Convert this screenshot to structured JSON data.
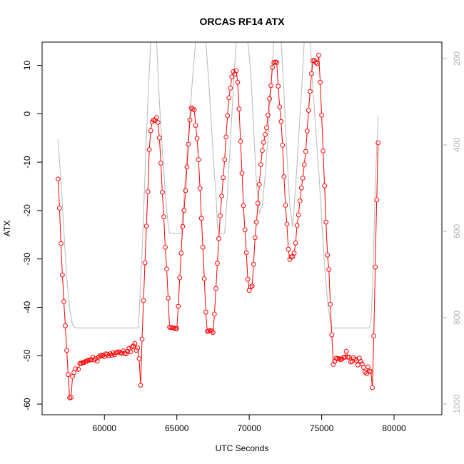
{
  "chart_data": {
    "type": "line",
    "title": "ORCAS RF14 ATX",
    "xlabel": "UTC Seconds",
    "ylabel": "ATX",
    "xlim": [
      55700,
      83300
    ],
    "ylim": [
      -62.2,
      14.8
    ],
    "y2lim": [
      1025,
      162
    ],
    "y2_reversed": true,
    "x_ticks": [
      60000,
      65000,
      70000,
      75000,
      80000
    ],
    "y_ticks": [
      10,
      0,
      -10,
      -20,
      -30,
      -40,
      -50,
      -60
    ],
    "y2_ticks": [
      200,
      400,
      600,
      800,
      1000
    ],
    "colors": {
      "atx_series": "#ff0000",
      "secondary_series": "#bebebe",
      "axis": "#000000",
      "right_axis": "#b3b3b3"
    },
    "series": [
      {
        "values": [
          [
            56800,
            -13.5
          ],
          [
            56900,
            -19.5
          ],
          [
            57000,
            -26.8
          ],
          [
            57100,
            -33.3
          ],
          [
            57200,
            -38.8
          ],
          [
            57300,
            -43.8
          ],
          [
            57400,
            -48.9
          ],
          [
            57500,
            -53.9
          ],
          [
            57600,
            -58.7
          ],
          [
            57700,
            -58.6
          ],
          [
            57800,
            -54.3
          ],
          [
            57900,
            -53.5
          ],
          [
            58000,
            -52.7
          ],
          [
            58200,
            -52.8
          ],
          [
            58300,
            -51.6
          ],
          [
            58400,
            -51.6
          ],
          [
            58500,
            -51.4
          ],
          [
            58600,
            -51.4
          ],
          [
            58700,
            -51.2
          ],
          [
            58800,
            -51.1
          ],
          [
            58900,
            -50.9
          ],
          [
            59000,
            -50.9
          ],
          [
            59100,
            -50.8
          ],
          [
            59200,
            -50.3
          ],
          [
            59300,
            -50.9
          ],
          [
            59400,
            -50.6
          ],
          [
            59500,
            -51.1
          ],
          [
            59600,
            -50.3
          ],
          [
            59700,
            -50.0
          ],
          [
            59800,
            -50.0
          ],
          [
            59900,
            -49.9
          ],
          [
            60000,
            -50.2
          ],
          [
            60100,
            -49.6
          ],
          [
            60200,
            -49.7
          ],
          [
            60300,
            -50.0
          ],
          [
            60400,
            -49.6
          ],
          [
            60500,
            -49.9
          ],
          [
            60600,
            -49.4
          ],
          [
            60700,
            -49.8
          ],
          [
            60800,
            -49.4
          ],
          [
            60900,
            -49.3
          ],
          [
            61000,
            -49.2
          ],
          [
            61100,
            -49.4
          ],
          [
            61200,
            -49.5
          ],
          [
            61300,
            -49.0
          ],
          [
            61400,
            -49.5
          ],
          [
            61500,
            -49.6
          ],
          [
            61600,
            -49.1
          ],
          [
            61700,
            -48.5
          ],
          [
            61800,
            -49.2
          ],
          [
            61900,
            -48.2
          ],
          [
            62000,
            -48.0
          ],
          [
            62100,
            -47.5
          ],
          [
            62200,
            -48.9
          ],
          [
            62300,
            -48.4
          ],
          [
            62400,
            -50.6
          ],
          [
            62500,
            -56.1
          ],
          [
            62600,
            -46.6
          ],
          [
            62700,
            -38.6
          ],
          [
            62800,
            -30.8
          ],
          [
            62900,
            -23.2
          ],
          [
            63000,
            -16.1
          ],
          [
            63100,
            -7.4
          ],
          [
            63200,
            -3.5
          ],
          [
            63300,
            -1.7
          ],
          [
            63400,
            -1.3
          ],
          [
            63500,
            -1.4
          ],
          [
            63600,
            -0.8
          ],
          [
            63700,
            -1.8
          ],
          [
            63800,
            -5.0
          ],
          [
            63900,
            -10.2
          ],
          [
            64000,
            -16.2
          ],
          [
            64100,
            -21.3
          ],
          [
            64200,
            -27.6
          ],
          [
            64300,
            -32.1
          ],
          [
            64400,
            -38.1
          ],
          [
            64500,
            -44.1
          ],
          [
            64600,
            -44.2
          ],
          [
            64700,
            -44.2
          ],
          [
            64800,
            -44.3
          ],
          [
            64900,
            -44.4
          ],
          [
            65000,
            -44.4
          ],
          [
            65100,
            -39.8
          ],
          [
            65200,
            -33.9
          ],
          [
            65300,
            -28.8
          ],
          [
            65400,
            -23.3
          ],
          [
            65500,
            -20.0
          ],
          [
            65600,
            -15.9
          ],
          [
            65700,
            -11.0
          ],
          [
            65800,
            -6.3
          ],
          [
            65900,
            -1.3
          ],
          [
            66000,
            1.2
          ],
          [
            66100,
            1.0
          ],
          [
            66200,
            0.8
          ],
          [
            66300,
            -2.4
          ],
          [
            66400,
            -5.1
          ],
          [
            66500,
            -9.5
          ],
          [
            66600,
            -15.4
          ],
          [
            66700,
            -21.6
          ],
          [
            66800,
            -27.6
          ],
          [
            66900,
            -34.1
          ],
          [
            67000,
            -41.0
          ],
          [
            67100,
            -45.0
          ],
          [
            67200,
            -44.9
          ],
          [
            67300,
            -44.8
          ],
          [
            67400,
            -44.9
          ],
          [
            67500,
            -45.2
          ],
          [
            67600,
            -41.4
          ],
          [
            67700,
            -36.1
          ],
          [
            67800,
            -30.9
          ],
          [
            67900,
            -25.8
          ],
          [
            68000,
            -21.1
          ],
          [
            68100,
            -17.0
          ],
          [
            68200,
            -13.2
          ],
          [
            68300,
            -9.5
          ],
          [
            68400,
            -4.8
          ],
          [
            68500,
            -0.4
          ],
          [
            68600,
            3.3
          ],
          [
            68700,
            5.3
          ],
          [
            68800,
            7.6
          ],
          [
            68900,
            8.7
          ],
          [
            69000,
            8.2
          ],
          [
            69100,
            8.9
          ],
          [
            69200,
            6.5
          ],
          [
            69300,
            1.0
          ],
          [
            69400,
            -5.7
          ],
          [
            69500,
            -12.3
          ],
          [
            69600,
            -19.0
          ],
          [
            69700,
            -24.0
          ],
          [
            69800,
            -28.7
          ],
          [
            69900,
            -34.2
          ],
          [
            70000,
            -36.5
          ],
          [
            70100,
            -35.8
          ],
          [
            70200,
            -35.6
          ],
          [
            70300,
            -31.1
          ],
          [
            70400,
            -25.6
          ],
          [
            70500,
            -22.4
          ],
          [
            70600,
            -18.5
          ],
          [
            70700,
            -14.6
          ],
          [
            70800,
            -10.5
          ],
          [
            70900,
            -7.6
          ],
          [
            71000,
            -5.9
          ],
          [
            71100,
            -4.3
          ],
          [
            71200,
            -2.9
          ],
          [
            71300,
            -0.3
          ],
          [
            71400,
            3.1
          ],
          [
            71500,
            5.8
          ],
          [
            71600,
            9.6
          ],
          [
            71700,
            10.6
          ],
          [
            71800,
            10.7
          ],
          [
            71900,
            10.6
          ],
          [
            72000,
            5.7
          ],
          [
            72100,
            1.4
          ],
          [
            72200,
            -1.6
          ],
          [
            72300,
            -6.5
          ],
          [
            72400,
            -13.0
          ],
          [
            72500,
            -18.9
          ],
          [
            72600,
            -22.8
          ],
          [
            72700,
            -28.0
          ],
          [
            72800,
            -30.1
          ],
          [
            72900,
            -29.6
          ],
          [
            73000,
            -29.5
          ],
          [
            73100,
            -28.8
          ],
          [
            73200,
            -26.7
          ],
          [
            73300,
            -23.1
          ],
          [
            73400,
            -20.9
          ],
          [
            73500,
            -18.0
          ],
          [
            73600,
            -15.3
          ],
          [
            73700,
            -13.3
          ],
          [
            73800,
            -10.5
          ],
          [
            73900,
            -7.8
          ],
          [
            74000,
            -3.6
          ],
          [
            74100,
            0.7
          ],
          [
            74200,
            4.6
          ],
          [
            74300,
            8.3
          ],
          [
            74400,
            11.0
          ],
          [
            74500,
            11.0
          ],
          [
            74600,
            10.6
          ],
          [
            74700,
            10.4
          ],
          [
            74800,
            12.1
          ],
          [
            74900,
            6.5
          ],
          [
            75000,
            -0.3
          ],
          [
            75100,
            -7.7
          ],
          [
            75200,
            -14.9
          ],
          [
            75300,
            -22.4
          ],
          [
            75400,
            -29.2
          ],
          [
            75500,
            -32.2
          ],
          [
            75600,
            -39.4
          ],
          [
            75700,
            -45.7
          ],
          [
            75800,
            -51.8
          ],
          [
            75900,
            -51.2
          ],
          [
            76000,
            -50.5
          ],
          [
            76100,
            -50.6
          ],
          [
            76200,
            -50.6
          ],
          [
            76300,
            -50.8
          ],
          [
            76400,
            -50.7
          ],
          [
            76500,
            -50.4
          ],
          [
            76600,
            -50.3
          ],
          [
            76700,
            -49.1
          ],
          [
            76800,
            -50.3
          ],
          [
            76900,
            -50.3
          ],
          [
            77000,
            -51.3
          ],
          [
            77100,
            -51.2
          ],
          [
            77200,
            -50.4
          ],
          [
            77300,
            -50.7
          ],
          [
            77400,
            -51.0
          ],
          [
            77500,
            -51.9
          ],
          [
            77600,
            -50.5
          ],
          [
            77700,
            -51.2
          ],
          [
            77800,
            -51.7
          ],
          [
            77900,
            -52.4
          ],
          [
            78000,
            -53.4
          ],
          [
            78100,
            -53.7
          ],
          [
            78200,
            -52.3
          ],
          [
            78300,
            -53.2
          ],
          [
            78400,
            -53.3
          ],
          [
            78500,
            -56.6
          ],
          [
            78600,
            -45.9
          ],
          [
            78700,
            -31.7
          ],
          [
            78800,
            -17.8
          ],
          [
            78900,
            -6.0
          ]
        ]
      },
      {
        "values": [
          [
            56800,
            387
          ],
          [
            57000,
            483
          ],
          [
            57200,
            597
          ],
          [
            57400,
            708
          ],
          [
            57600,
            781
          ],
          [
            57800,
            816
          ],
          [
            58000,
            824
          ],
          [
            60000,
            824
          ],
          [
            62000,
            824
          ],
          [
            62350,
            824
          ],
          [
            62600,
            650
          ],
          [
            62800,
            470
          ],
          [
            63000,
            300
          ],
          [
            63200,
            160
          ],
          [
            63600,
            160
          ],
          [
            63800,
            300
          ],
          [
            64000,
            410
          ],
          [
            64200,
            510
          ],
          [
            64400,
            585
          ],
          [
            64500,
            605
          ],
          [
            65300,
            605
          ],
          [
            65500,
            520
          ],
          [
            65700,
            420
          ],
          [
            65900,
            330
          ],
          [
            66100,
            240
          ],
          [
            66300,
            160
          ],
          [
            67000,
            160
          ],
          [
            67200,
            250
          ],
          [
            67400,
            360
          ],
          [
            67600,
            470
          ],
          [
            67700,
            510
          ],
          [
            67800,
            590
          ],
          [
            67900,
            605
          ],
          [
            68300,
            605
          ],
          [
            68500,
            510
          ],
          [
            68700,
            390
          ],
          [
            68900,
            270
          ],
          [
            69100,
            160
          ],
          [
            69900,
            160
          ],
          [
            70100,
            230
          ],
          [
            70300,
            360
          ],
          [
            70500,
            490
          ],
          [
            70700,
            560
          ],
          [
            70900,
            540
          ],
          [
            71100,
            470
          ],
          [
            71300,
            380
          ],
          [
            71500,
            270
          ],
          [
            71700,
            160
          ],
          [
            72200,
            160
          ],
          [
            72400,
            280
          ],
          [
            72600,
            420
          ],
          [
            72800,
            540
          ],
          [
            73000,
            590
          ],
          [
            73200,
            500
          ],
          [
            73400,
            390
          ],
          [
            73600,
            280
          ],
          [
            73800,
            160
          ],
          [
            74200,
            160
          ],
          [
            74400,
            270
          ],
          [
            74600,
            370
          ],
          [
            74800,
            460
          ],
          [
            75000,
            570
          ],
          [
            75200,
            680
          ],
          [
            75400,
            760
          ],
          [
            75600,
            810
          ],
          [
            75700,
            824
          ],
          [
            77000,
            824
          ],
          [
            78300,
            824
          ],
          [
            78400,
            810
          ],
          [
            78500,
            740
          ],
          [
            78600,
            630
          ],
          [
            78700,
            490
          ],
          [
            78900,
            335
          ]
        ]
      }
    ]
  }
}
